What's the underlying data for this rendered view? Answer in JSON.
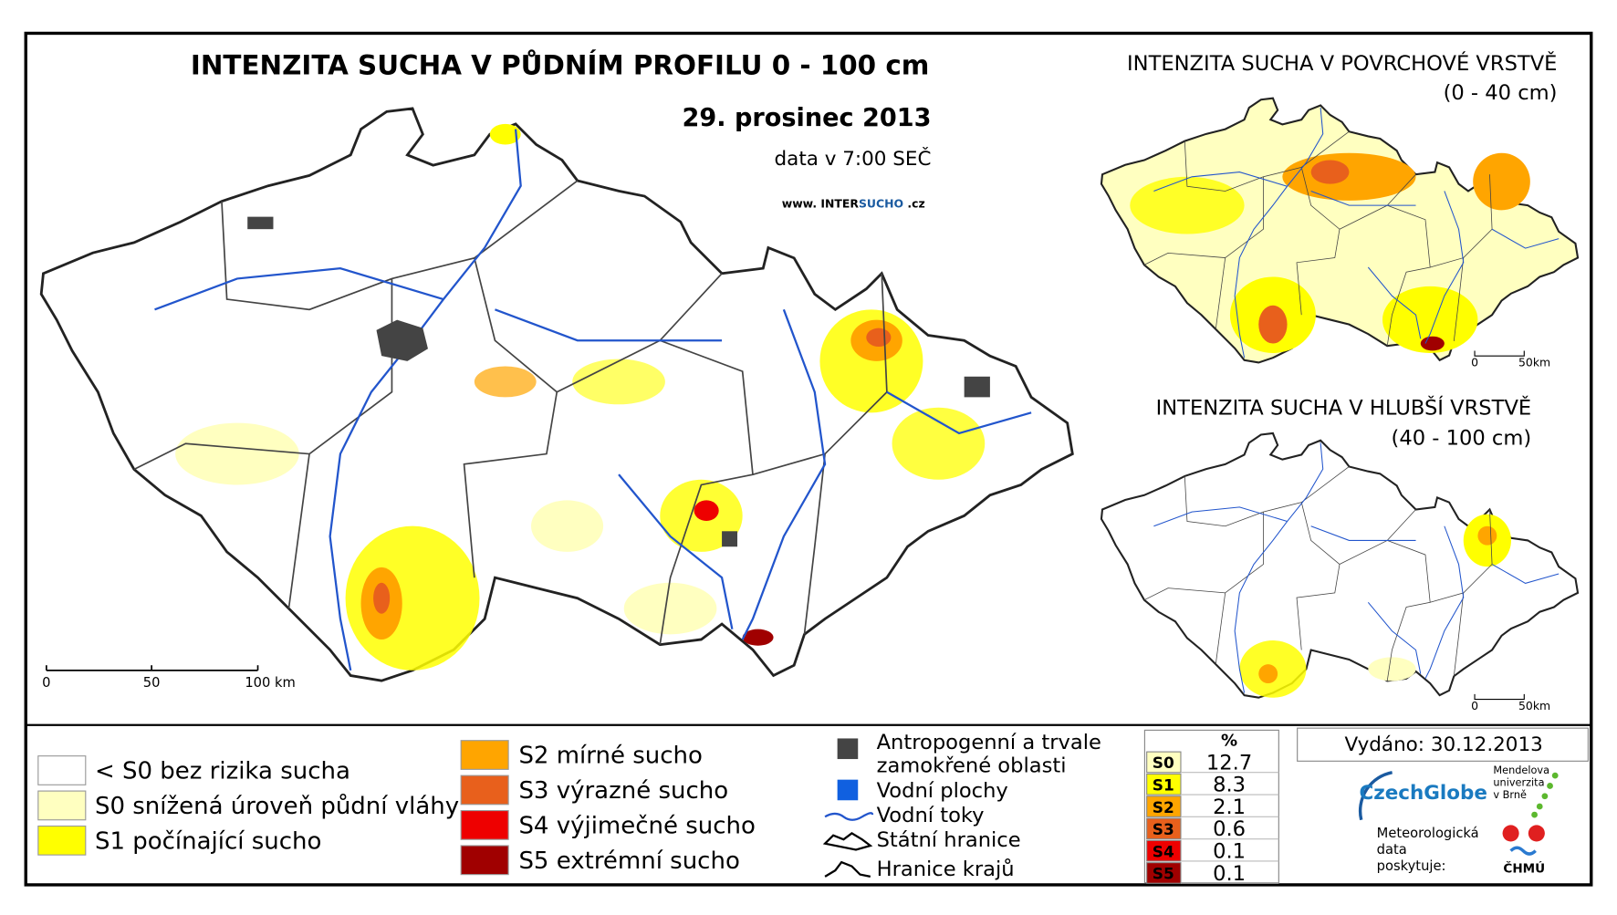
{
  "main": {
    "title": "INTENZITA SUCHA V PŮDNÍM PROFILU 0 - 100 cm",
    "date": "29. prosinec 2013",
    "data_time": "data v 7:00 SEČ",
    "website_prefix": "www. INTER",
    "website_brand": "SUCHO",
    "website_suffix": ".cz",
    "scale": [
      "0",
      "50",
      "100 km"
    ]
  },
  "inset_top": {
    "title": "INTENZITA SUCHA V POVRCHOVÉ VRSTVĚ",
    "subtitle": "(0 - 40 cm)",
    "scale": [
      "0",
      "50km"
    ]
  },
  "inset_bottom": {
    "title": "INTENZITA SUCHA V HLUBŠÍ VRSTVĚ",
    "subtitle": "(40 - 100 cm)",
    "scale": [
      "0",
      "50km"
    ]
  },
  "legend": {
    "classes": [
      {
        "label": "< S0 bez rizika sucha",
        "color": "#ffffff"
      },
      {
        "label": "S0 snížená úroveň půdní vláhy",
        "color": "#ffffc0"
      },
      {
        "label": "S1 počínající sucho",
        "color": "#ffff00"
      },
      {
        "label": "S2 mírné sucho",
        "color": "#ffa500"
      },
      {
        "label": "S3 výrazné sucho",
        "color": "#e8601c"
      },
      {
        "label": "S4 výjimečné sucho",
        "color": "#ee0000"
      },
      {
        "label": "S5 extrémní sucho",
        "color": "#a00000"
      }
    ],
    "other": {
      "anthropogenic": [
        "Antropogenní a trvale",
        "zamokřené oblasti"
      ],
      "water_bodies": "Vodní plochy",
      "rivers": "Vodní toky",
      "state_border": "Státní hranice",
      "region_border": "Hranice krajů"
    }
  },
  "table": {
    "header": "%",
    "rows": [
      {
        "code": "S0",
        "value": 12.7,
        "color": "#ffffc0"
      },
      {
        "code": "S1",
        "value": 8.3,
        "color": "#ffff00"
      },
      {
        "code": "S2",
        "value": 2.1,
        "color": "#ffa500"
      },
      {
        "code": "S3",
        "value": 0.6,
        "color": "#e8601c"
      },
      {
        "code": "S4",
        "value": 0.1,
        "color": "#ee0000"
      },
      {
        "code": "S5",
        "value": 0.1,
        "color": "#a00000"
      }
    ]
  },
  "issued": "Vydáno: 30.12.2013",
  "logos": {
    "czechglobe": "CzechGlobe",
    "mendelu": [
      "Mendelova",
      "univerzita",
      "v Brně"
    ],
    "provider": [
      "Meteorologická",
      "data",
      "poskytuje:"
    ],
    "chmu": "ČHMÚ"
  }
}
